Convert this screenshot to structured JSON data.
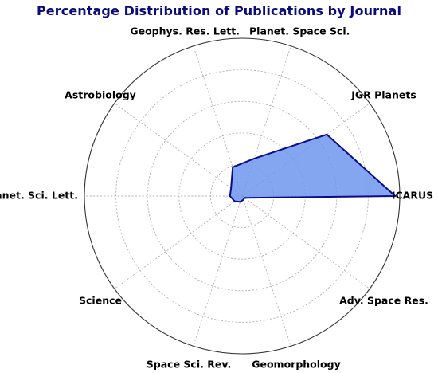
{
  "chart_data": {
    "type": "radar",
    "title": "Percentage Distribution of Publications by Journal",
    "categories": [
      "ICARUS",
      "JGR Planets",
      "Planet. Space Sci.",
      "Geophys. Res. Lett.",
      "Astrobiology",
      "Earth & Planet. Sci. Lett.",
      "Science",
      "Space Sci. Rev.",
      "Geomorphology",
      "Adv. Space Res."
    ],
    "values": [
      50.5,
      34.5,
      13.0,
      10.0,
      4.5,
      4.0,
      3.0,
      2.0,
      1.3,
      1.0
    ],
    "rmax": 52,
    "grid": true,
    "ring_count": 5,
    "colors": {
      "fill": "#6f97ef",
      "line": "#0b0b8a",
      "title": "#0b0b7a"
    }
  }
}
